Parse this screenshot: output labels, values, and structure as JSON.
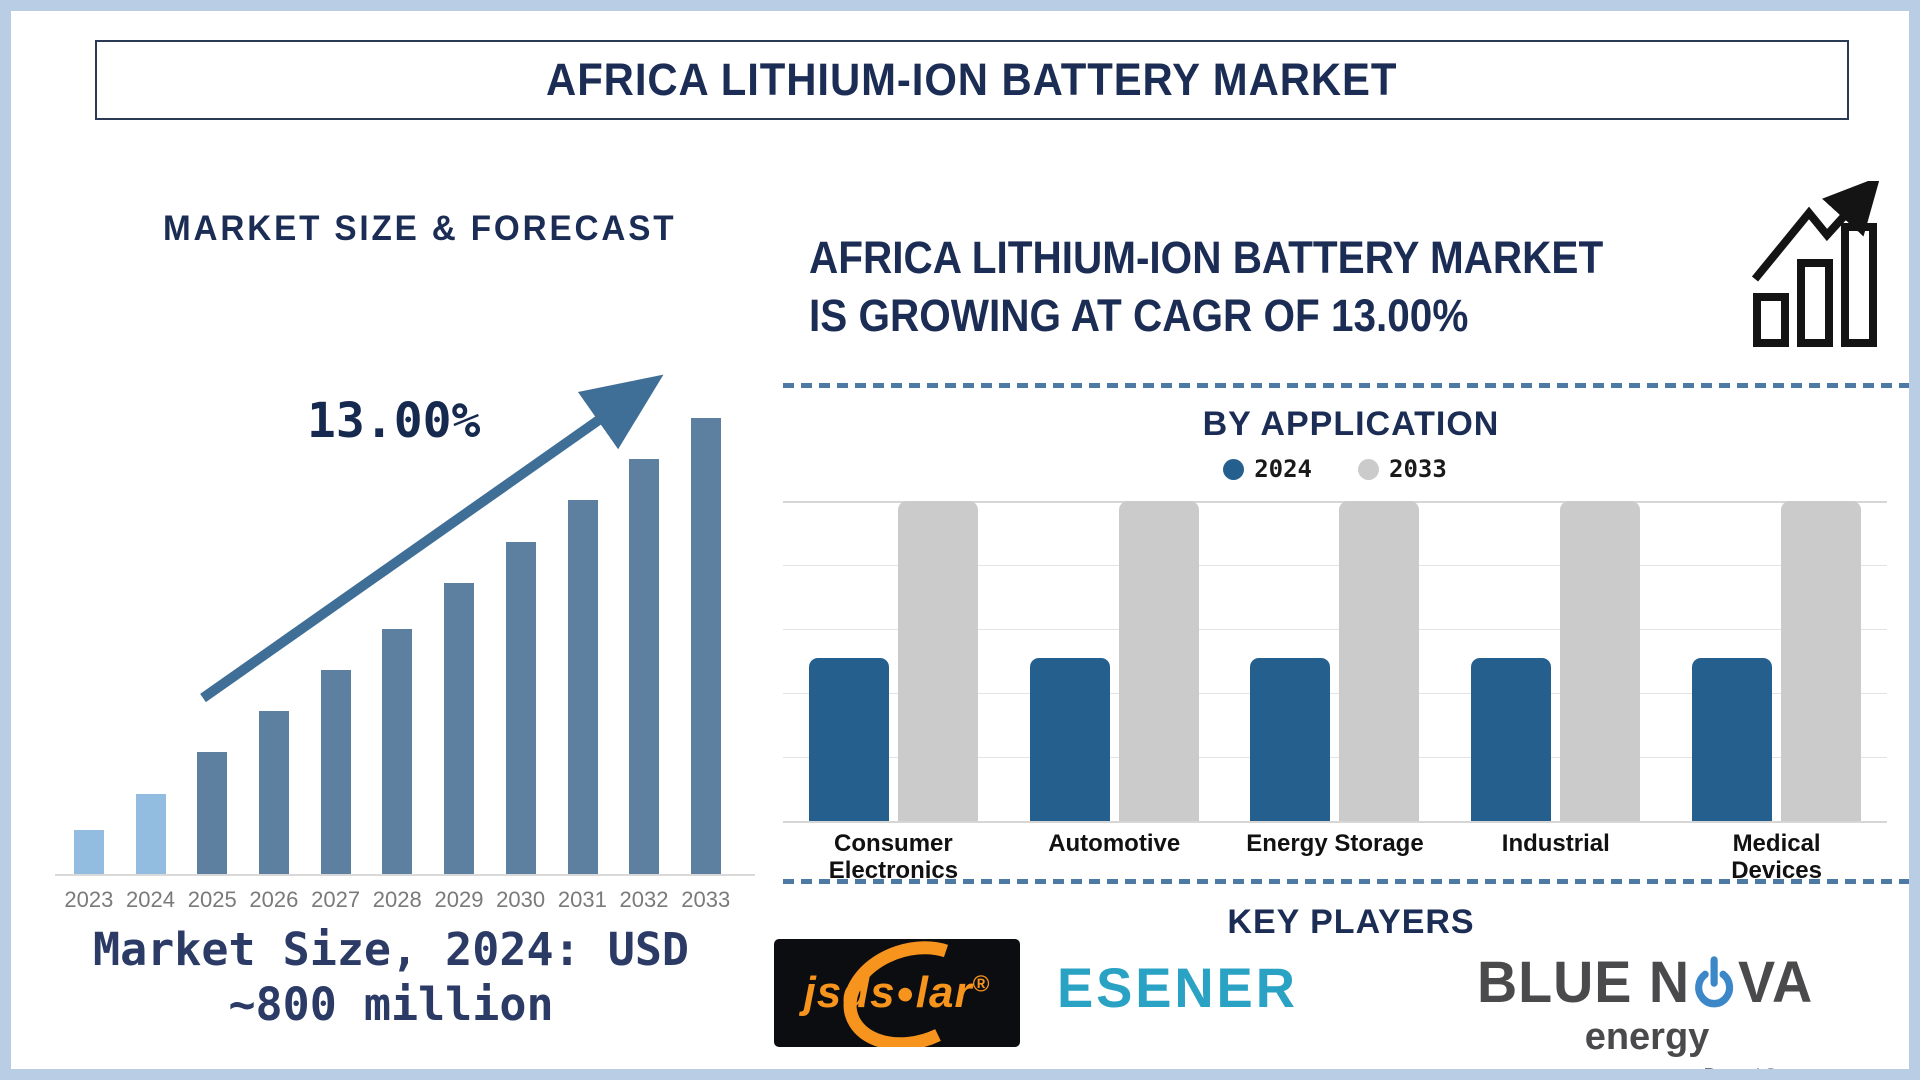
{
  "title": "AFRICA LITHIUM-ION BATTERY MARKET",
  "left_panel": {
    "heading": "MARKET SIZE & FORECAST",
    "cagr_annotation": "13.00%",
    "caption_line1": "Market Size, 2024: USD",
    "caption_line2": "~800 million"
  },
  "right_panel": {
    "headline_line1": "AFRICA LITHIUM-ION BATTERY MARKET",
    "headline_line2": "IS GROWING AT CAGR OF 13.00%",
    "growth_icon": "bar-chart-growth-icon",
    "by_application_heading": "BY APPLICATION",
    "key_players_heading": "KEY PLAYERS",
    "players": {
      "jsdsolar": {
        "text_left": "jsds",
        "sun_glyph": "●",
        "text_right": "lar",
        "registered": "®"
      },
      "esener": {
        "text": "ESENER"
      },
      "bluenova": {
        "text_left": "BLUE N",
        "text_right": "VA",
        "sub_text": "energy",
        "tagline_prefix": "a ",
        "tagline_bold": "Reunert",
        "tagline_suffix": " Company"
      }
    }
  },
  "colors": {
    "frame_border": "#b9cde5",
    "heading_navy": "#1c2d55",
    "caption_navy": "#2b3b66",
    "arrow_steel_blue": "#3f6e96",
    "dashed_divider": "#4c7aa4",
    "light_blue_bar": "#92bce0",
    "steel_blue_bar": "#5d80a0",
    "app_2024_bar": "#245f8e",
    "app_2033_bar": "#cbcbcb",
    "year_label_gray": "#7a7a7a",
    "esener_teal": "#29a2c4",
    "jsdsolar_orange": "#f7941d",
    "bluenova_gray": "#4a4a4c",
    "power_symbol_blue": "#3b87c8"
  },
  "chart_data": [
    {
      "type": "bar",
      "title": "MARKET SIZE & FORECAST",
      "categories": [
        "2023",
        "2024",
        "2025",
        "2026",
        "2027",
        "2028",
        "2029",
        "2030",
        "2031",
        "2032",
        "2033"
      ],
      "values_pct_of_max": [
        10,
        18,
        27,
        36,
        45,
        54,
        64,
        73,
        82,
        91,
        100
      ],
      "anchor_value": {
        "category": "2024",
        "value": "USD ~800 million"
      },
      "annotation": "13.00%",
      "bar_colors": [
        "#92bce0",
        "#92bce0",
        "#5d80a0",
        "#5d80a0",
        "#5d80a0",
        "#5d80a0",
        "#5d80a0",
        "#5d80a0",
        "#5d80a0",
        "#5d80a0",
        "#5d80a0"
      ],
      "xlabel": "",
      "ylabel": "",
      "grid": false,
      "legend": false,
      "note": "Stylized infographic bars; no numeric y-axis shown. 2024 bar equals USD ~800 million."
    },
    {
      "type": "bar",
      "title": "BY APPLICATION",
      "categories": [
        "Consumer Electronics",
        "Automotive",
        "Energy Storage",
        "Industrial",
        "Medical Devices"
      ],
      "series": [
        {
          "name": "2024",
          "color": "#245f8e",
          "values_pct_of_plot": [
            51,
            51,
            51,
            51,
            51
          ]
        },
        {
          "name": "2033",
          "color": "#cbcbcb",
          "values_pct_of_plot": [
            100,
            100,
            100,
            100,
            100
          ]
        }
      ],
      "legend_position": "top",
      "grid": true,
      "gridline_intervals": 5,
      "note": "No numeric axis shown; bar heights are relative to plot height."
    }
  ]
}
